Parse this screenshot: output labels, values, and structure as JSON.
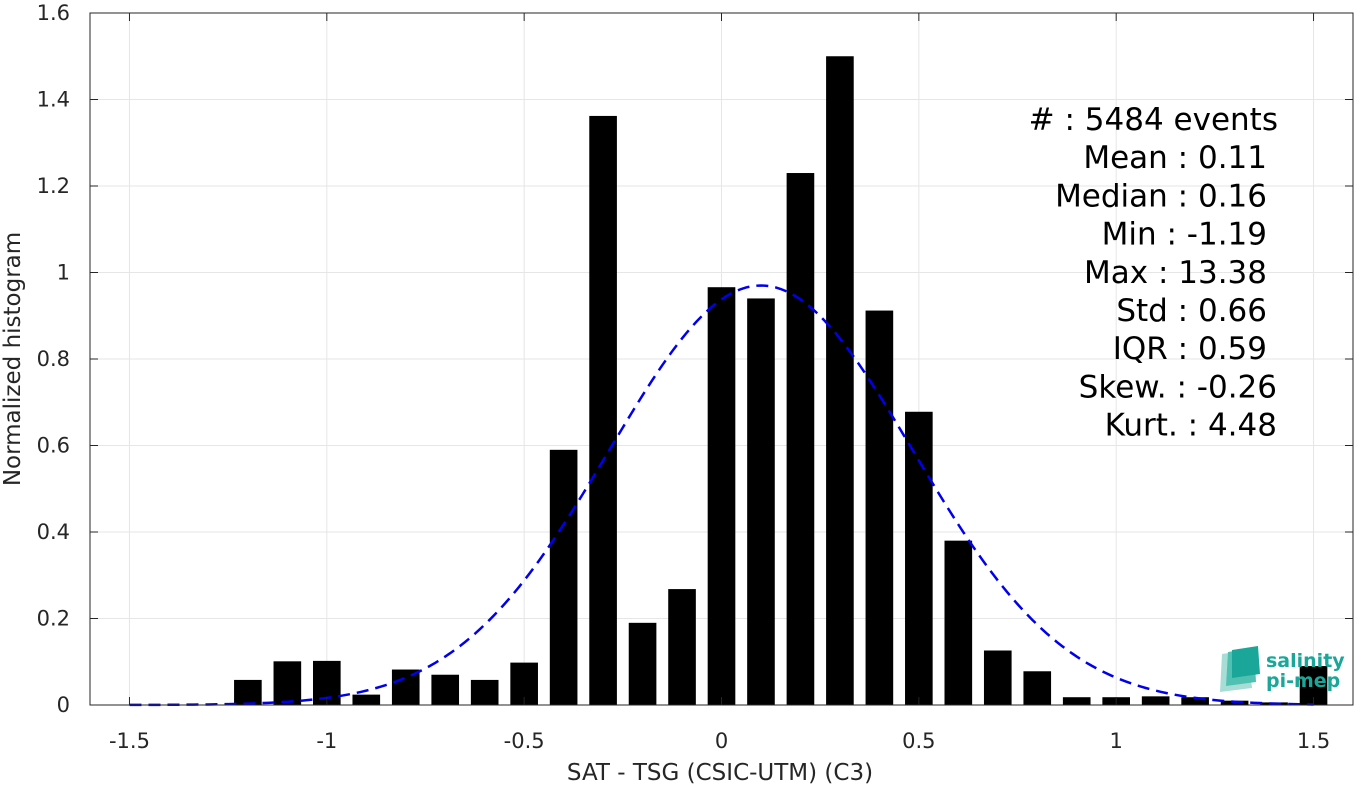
{
  "chart_data": {
    "type": "bar",
    "xlabel": "SAT - TSG (CSIC-UTM) (C3)",
    "ylabel": "Normalized histogram",
    "xlim": [
      -1.6,
      1.6
    ],
    "ylim": [
      0,
      1.6
    ],
    "xticks": [
      -1.5,
      -1,
      -0.5,
      0,
      0.5,
      1,
      1.5
    ],
    "xtick_labels": [
      "-1.5",
      "-1",
      "-0.5",
      "0",
      "0.5",
      "1",
      "1.5"
    ],
    "yticks": [
      0,
      0.2,
      0.4,
      0.6,
      0.8,
      1,
      1.2,
      1.4,
      1.6
    ],
    "ytick_labels": [
      "0",
      "0.2",
      "0.4",
      "0.6",
      "0.8",
      "1",
      "1.2",
      "1.4",
      "1.6"
    ],
    "grid": true,
    "bar_width": 0.07,
    "bars": {
      "x": [
        -1.2,
        -1.1,
        -1.0,
        -0.9,
        -0.8,
        -0.7,
        -0.6,
        -0.5,
        -0.4,
        -0.3,
        -0.2,
        -0.1,
        0.0,
        0.1,
        0.2,
        0.3,
        0.4,
        0.5,
        0.6,
        0.7,
        0.8,
        0.9,
        1.0,
        1.1,
        1.2,
        1.3,
        1.4,
        1.5
      ],
      "values": [
        0.058,
        0.101,
        0.102,
        0.024,
        0.082,
        0.07,
        0.058,
        0.098,
        0.59,
        1.362,
        0.19,
        0.268,
        0.966,
        0.94,
        1.23,
        1.5,
        0.912,
        0.678,
        0.38,
        0.126,
        0.078,
        0.018,
        0.018,
        0.02,
        0.018,
        0.01,
        0.006,
        0.09
      ],
      "color": "#000000"
    },
    "fit": {
      "type": "gaussian",
      "mean": 0.1,
      "peak": 0.97,
      "sigma": 0.385,
      "x_range": [
        -1.5,
        1.5
      ],
      "color": "#0000ee",
      "style": "dashed"
    },
    "stats": [
      {
        "label": "#  : 5484 events"
      },
      {
        "label": "Mean : 0.11"
      },
      {
        "label": "Median : 0.16"
      },
      {
        "label": "Min : -1.19"
      },
      {
        "label": "Max : 13.38"
      },
      {
        "label": "Std : 0.66"
      },
      {
        "label": "IQR : 0.59"
      },
      {
        "label": "Skew. : -0.26"
      },
      {
        "label": "Kurt. : 4.48"
      }
    ]
  },
  "logo": {
    "line1": "salinity",
    "line2": "pi-mep",
    "color": "#1aa79a"
  }
}
